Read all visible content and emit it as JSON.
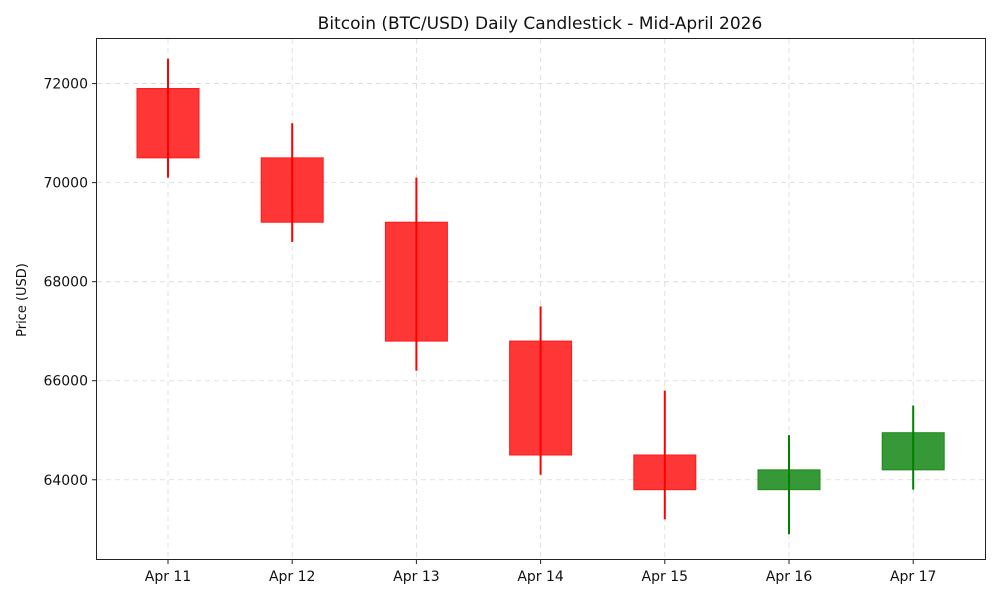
{
  "chart_data": {
    "type": "candlestick",
    "title": "Bitcoin (BTC/USD) Daily Candlestick - Mid-April 2026",
    "xlabel": "",
    "ylabel": "Price (USD)",
    "ylim": [
      62400,
      72900
    ],
    "yticks": [
      64000,
      66000,
      68000,
      70000,
      72000
    ],
    "grid": true,
    "categories": [
      "Apr 11",
      "Apr 12",
      "Apr 13",
      "Apr 14",
      "Apr 15",
      "Apr 16",
      "Apr 17"
    ],
    "series": [
      {
        "name": "open",
        "values": [
          71900,
          70500,
          69200,
          66800,
          64500,
          63800,
          64200
        ]
      },
      {
        "name": "high",
        "values": [
          72500,
          71200,
          70100,
          67500,
          65800,
          64900,
          65500
        ]
      },
      {
        "name": "low",
        "values": [
          70100,
          68800,
          66200,
          64100,
          63200,
          62900,
          63800
        ]
      },
      {
        "name": "close",
        "values": [
          70500,
          69200,
          66800,
          64500,
          63800,
          64200,
          64950
        ]
      }
    ],
    "colors": {
      "up": "#1a8a1a",
      "down": "#ff1a1a",
      "up_wick": "#008000",
      "down_wick": "#ff0000"
    }
  }
}
